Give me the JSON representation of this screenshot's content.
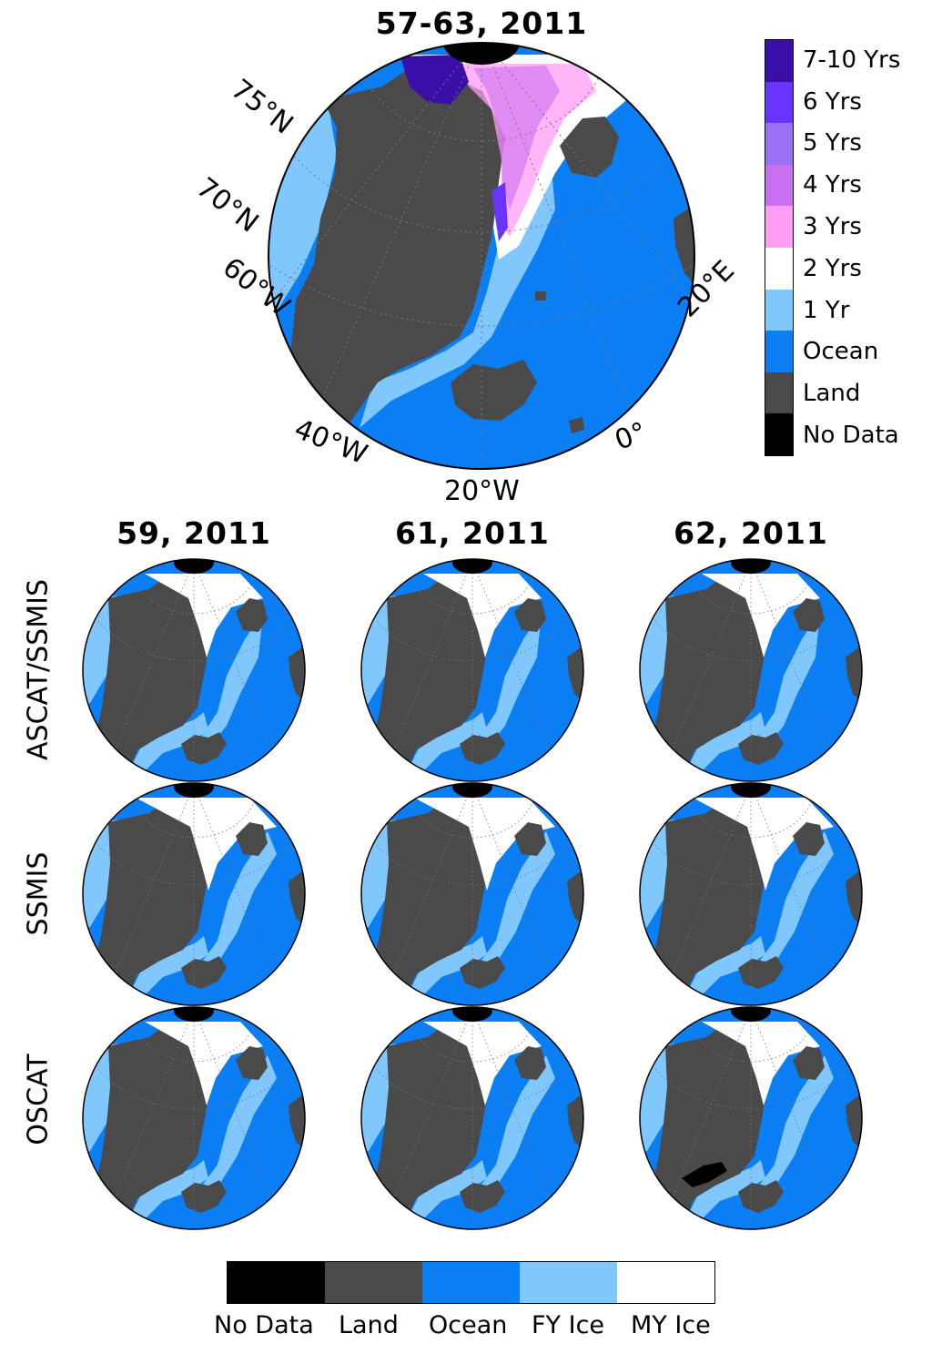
{
  "main_map": {
    "title": "57-63, 2011",
    "grid_labels": {
      "lat75": "75°N",
      "lat70": "70°N",
      "lon60w": "60°W",
      "lon40w": "40°W",
      "lon20w": "20°W",
      "lon0": "0°",
      "lon20e": "20°E"
    }
  },
  "age_colorbar": {
    "orientation": "vertical",
    "entries": [
      {
        "label": "7-10 Yrs",
        "color": "#3a0fa8"
      },
      {
        "label": "6 Yrs",
        "color": "#6a34ff"
      },
      {
        "label": "5 Yrs",
        "color": "#9b71f6"
      },
      {
        "label": "4 Yrs",
        "color": "#c970f0"
      },
      {
        "label": "3 Yrs",
        "color": "#ff9cf4"
      },
      {
        "label": "2 Yrs",
        "color": "#ffffff"
      },
      {
        "label": "1 Yr",
        "color": "#7fc7fd"
      },
      {
        "label": "Ocean",
        "color": "#0a7ef2"
      },
      {
        "label": "Land",
        "color": "#4a4a4a"
      },
      {
        "label": "No Data",
        "color": "#000000"
      }
    ]
  },
  "panel_columns": [
    "59, 2011",
    "61, 2011",
    "62, 2011"
  ],
  "panel_rows": [
    "ASCAT/SSMIS",
    "SSMIS",
    "OSCAT"
  ],
  "class_colorbar": {
    "orientation": "horizontal",
    "entries": [
      {
        "label": "No Data",
        "color": "#000000"
      },
      {
        "label": "Land",
        "color": "#4a4a4a"
      },
      {
        "label": "Ocean",
        "color": "#0a7ef2"
      },
      {
        "label": "FY Ice",
        "color": "#7fc7fd"
      },
      {
        "label": "MY Ice",
        "color": "#ffffff"
      }
    ]
  },
  "colors": {
    "ocean": "#0a7ef2",
    "land": "#4a4a4a",
    "fy_ice": "#7fc7fd",
    "my_ice": "#ffffff",
    "no_data": "#000000",
    "age_7_10": "#3a0fa8",
    "age_6": "#6a34ff",
    "age_4": "#c970f0",
    "age_3": "#ff9cf4"
  }
}
